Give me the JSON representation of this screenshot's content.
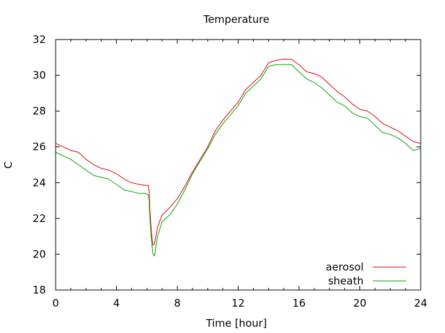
{
  "chart_data": {
    "type": "line",
    "title": "Temperature",
    "xlabel": "Time [hour]",
    "ylabel": "C",
    "xlim": [
      0,
      24
    ],
    "ylim": [
      18,
      32
    ],
    "x_ticks": [
      0,
      4,
      8,
      12,
      16,
      20,
      24
    ],
    "y_ticks": [
      18,
      20,
      22,
      24,
      26,
      28,
      30,
      32
    ],
    "grid": false,
    "legend": "bottom-right",
    "series": [
      {
        "name": "aerosol",
        "color": "#e00000",
        "x": [
          0,
          0.5,
          1,
          1.5,
          2,
          2.5,
          3,
          3.5,
          4,
          4.5,
          5,
          5.5,
          5.9,
          6.1,
          6.15,
          6.2,
          6.3,
          6.4,
          6.5,
          6.7,
          7,
          7.5,
          8,
          8.5,
          9,
          9.5,
          10,
          10.5,
          11,
          11.5,
          12,
          12.5,
          13,
          13.5,
          14,
          14.5,
          15,
          15.5,
          16,
          16.5,
          17,
          17.5,
          18,
          18.5,
          19,
          19.5,
          20,
          20.5,
          21,
          21.5,
          22,
          22.5,
          23,
          23.5,
          24
        ],
        "y": [
          26.2,
          26.0,
          25.8,
          25.7,
          25.3,
          25.0,
          24.8,
          24.7,
          24.5,
          24.2,
          24.0,
          23.9,
          23.85,
          23.85,
          23.5,
          22.5,
          21.2,
          20.5,
          20.6,
          21.5,
          22.2,
          22.6,
          23.1,
          23.8,
          24.6,
          25.3,
          26.0,
          26.9,
          27.5,
          28.0,
          28.5,
          29.2,
          29.6,
          30.0,
          30.7,
          30.85,
          30.9,
          30.9,
          30.6,
          30.2,
          30.1,
          29.9,
          29.5,
          29.1,
          28.8,
          28.4,
          28.1,
          28.0,
          27.7,
          27.3,
          27.1,
          26.9,
          26.6,
          26.3,
          26.2
        ]
      },
      {
        "name": "sheath",
        "color": "#00a000",
        "x": [
          0,
          0.5,
          1,
          1.5,
          2,
          2.5,
          3,
          3.5,
          4,
          4.5,
          5,
          5.5,
          5.9,
          6.1,
          6.15,
          6.2,
          6.3,
          6.4,
          6.5,
          6.7,
          7,
          7.5,
          8,
          8.5,
          9,
          9.5,
          10,
          10.5,
          11,
          11.5,
          12,
          12.5,
          13,
          13.5,
          14,
          14.5,
          15,
          15.5,
          16,
          16.5,
          17,
          17.5,
          18,
          18.5,
          19,
          19.5,
          20,
          20.5,
          21,
          21.5,
          22,
          22.5,
          23,
          23.5,
          24
        ],
        "y": [
          25.7,
          25.5,
          25.3,
          25.0,
          24.7,
          24.4,
          24.3,
          24.2,
          23.9,
          23.6,
          23.5,
          23.4,
          23.4,
          23.3,
          23.0,
          22.0,
          20.8,
          20.0,
          19.9,
          21.0,
          21.8,
          22.2,
          22.8,
          23.6,
          24.5,
          25.2,
          25.9,
          26.7,
          27.3,
          27.8,
          28.3,
          29.0,
          29.4,
          29.8,
          30.5,
          30.6,
          30.6,
          30.6,
          30.2,
          29.8,
          29.6,
          29.3,
          28.9,
          28.5,
          28.3,
          27.9,
          27.7,
          27.6,
          27.2,
          26.8,
          26.7,
          26.5,
          26.2,
          25.8,
          25.9
        ]
      }
    ]
  }
}
